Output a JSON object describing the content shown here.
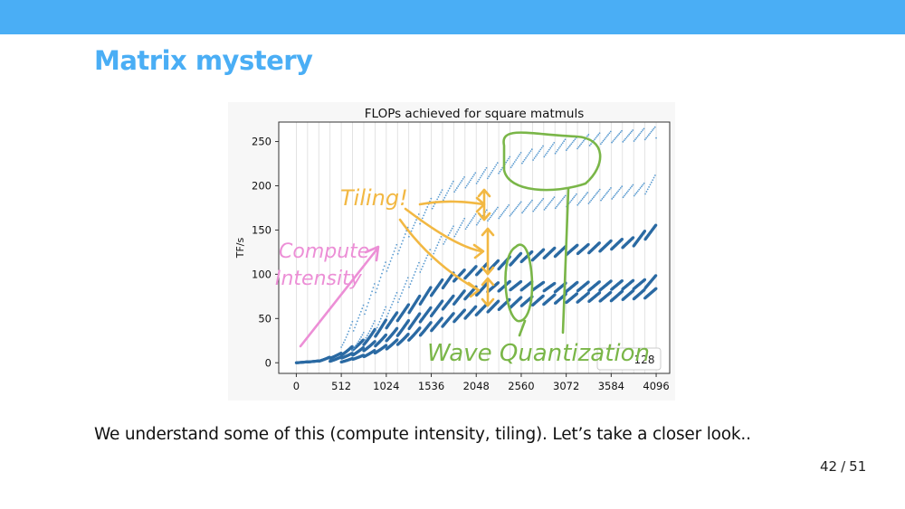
{
  "slide": {
    "title": "Matrix mystery",
    "caption": "We understand some of this (compute intensity, tiling). Let’s take a closer look..",
    "page_current": "42",
    "page_total": "51",
    "page_separator": "/"
  },
  "colors": {
    "accent": "#4aaef5",
    "series_dark": "#2b6aa3",
    "series_light": "#5b9bd0",
    "annotation_compute": "#ec8fd6",
    "annotation_tiling": "#f2b843",
    "annotation_wave": "#7ab648"
  },
  "annotations": {
    "tiling": "Tiling!",
    "compute": "Compute",
    "intensity": "Intensity",
    "wave": "Wave Quantization"
  },
  "chart_data": {
    "type": "scatter",
    "title": "FLOPs achieved for square matmuls",
    "xlabel": "",
    "ylabel": "TF/s",
    "xlim": [
      -200,
      4250
    ],
    "ylim": [
      -12,
      272
    ],
    "xticks": [
      0,
      512,
      1024,
      1536,
      2048,
      2560,
      3072,
      3584,
      4096
    ],
    "yticks": [
      0,
      50,
      100,
      150,
      200,
      250
    ],
    "vertical_gridlines_every": 128,
    "legend": {
      "label": "128",
      "placement": "lower-right"
    },
    "series": [
      {
        "style": "dark",
        "description_points": [
          [
            0,
            0
          ],
          [
            256,
            2
          ],
          [
            512,
            10
          ],
          [
            768,
            24
          ],
          [
            1024,
            45
          ],
          [
            1280,
            62
          ],
          [
            1536,
            82
          ],
          [
            1792,
            98
          ],
          [
            2048,
            105
          ],
          [
            2304,
            112
          ],
          [
            2560,
            120
          ],
          [
            2816,
            124
          ],
          [
            3072,
            128
          ],
          [
            3328,
            130
          ],
          [
            3584,
            134
          ],
          [
            3840,
            138
          ],
          [
            4096,
            152
          ]
        ]
      },
      {
        "style": "dark",
        "description_points": [
          [
            384,
            2
          ],
          [
            640,
            10
          ],
          [
            896,
            22
          ],
          [
            1152,
            36
          ],
          [
            1408,
            52
          ],
          [
            1664,
            66
          ],
          [
            1920,
            78
          ],
          [
            2176,
            86
          ],
          [
            2432,
            88
          ],
          [
            2688,
            88
          ],
          [
            2944,
            86
          ],
          [
            3200,
            87
          ],
          [
            3456,
            88
          ],
          [
            3712,
            89
          ],
          [
            3968,
            90
          ],
          [
            4096,
            95
          ]
        ]
      },
      {
        "style": "dark",
        "description_points": [
          [
            512,
            1
          ],
          [
            768,
            8
          ],
          [
            1024,
            18
          ],
          [
            1280,
            30
          ],
          [
            1536,
            42
          ],
          [
            1792,
            52
          ],
          [
            2048,
            60
          ],
          [
            2304,
            66
          ],
          [
            2560,
            70
          ],
          [
            2816,
            72
          ],
          [
            3072,
            74
          ],
          [
            3328,
            75
          ],
          [
            3584,
            76
          ],
          [
            3840,
            78
          ],
          [
            4096,
            80
          ]
        ]
      },
      {
        "style": "light",
        "description_points": [
          [
            512,
            22
          ],
          [
            768,
            60
          ],
          [
            1024,
            110
          ],
          [
            1280,
            150
          ],
          [
            1536,
            180
          ],
          [
            1792,
            200
          ],
          [
            2048,
            210
          ],
          [
            2304,
            222
          ],
          [
            2560,
            232
          ],
          [
            2816,
            240
          ],
          [
            3072,
            248
          ],
          [
            3328,
            252
          ],
          [
            3584,
            256
          ],
          [
            3840,
            258
          ],
          [
            4096,
            262
          ]
        ]
      },
      {
        "style": "light",
        "description_points": [
          [
            640,
            18
          ],
          [
            896,
            42
          ],
          [
            1152,
            75
          ],
          [
            1408,
            110
          ],
          [
            1664,
            140
          ],
          [
            1920,
            158
          ],
          [
            2176,
            168
          ],
          [
            2432,
            174
          ],
          [
            2688,
            178
          ],
          [
            2944,
            182
          ],
          [
            3200,
            186
          ],
          [
            3456,
            190
          ],
          [
            3712,
            194
          ],
          [
            3968,
            198
          ],
          [
            4096,
            208
          ]
        ]
      }
    ]
  }
}
